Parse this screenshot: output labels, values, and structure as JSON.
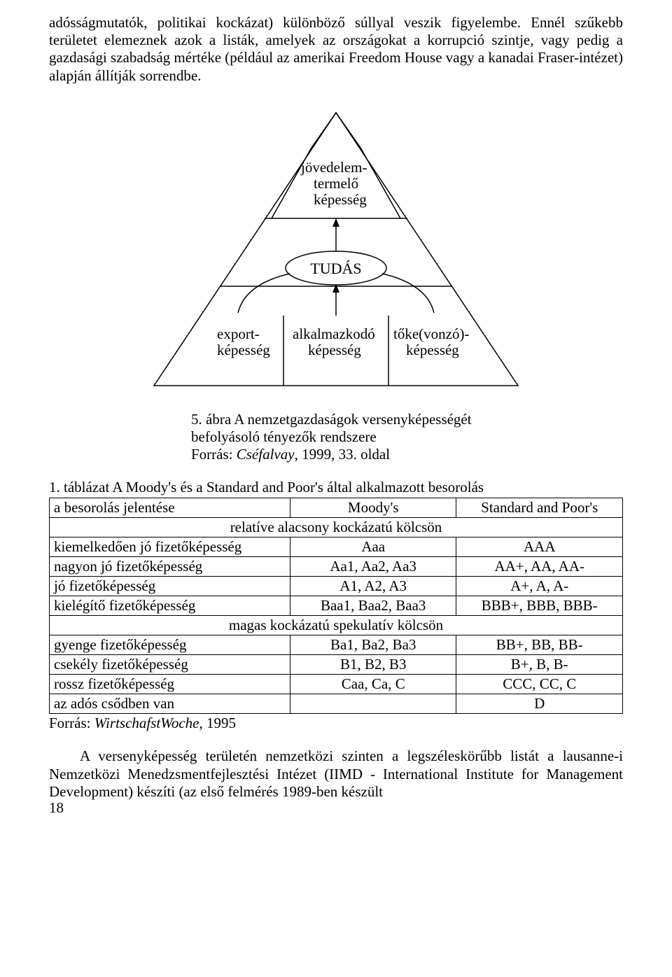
{
  "para1": "adósságmutatók, politikai kockázat) különböző súllyal veszik figyelembe. Ennél szűkebb területet elemeznek azok a listák, amelyek az országokat a korrupció szintje, vagy pedig a gazdasági szabadság mértéke (például az amerikai Freedom House vagy a kanadai Fraser-intézet) alapján állítják sorrendbe.",
  "diagram": {
    "top_label_l1": "jövedelem-",
    "top_label_l2": "termelő",
    "top_label_l3": "képesség",
    "center_label": "TUDÁS",
    "bottom_left_l1": "export-",
    "bottom_left_l2": "képesség",
    "bottom_mid_l1": "alkalmazkodó",
    "bottom_mid_l2": "képesség",
    "bottom_right_l1": "tőke(vonzó)-",
    "bottom_right_l2": "képesség",
    "stroke": "#000000",
    "bg": "#ffffff",
    "fontsize_main": 21,
    "fontsize_center": 22
  },
  "caption_lead": "5. ábra A nemzetgazdaságok versenyképességét befolyásoló tényezők rendszere",
  "caption_src_prefix": "Forrás: ",
  "caption_src_italic": "Cséfalvay",
  "caption_src_suffix": ", 1999, 33. oldal",
  "table_title": "1. táblázat A Moody's és a Standard and Poor's által alkalmazott besorolás",
  "table": {
    "head": [
      "a besorolás jelentése",
      "Moody's",
      "Standard and Poor's"
    ],
    "section1": "relatíve alacsony kockázatú kölcsön",
    "rows1": [
      [
        "kiemelkedően jó fizetőképesség",
        "Aaa",
        "AAA"
      ],
      [
        "nagyon jó fizetőképesség",
        "Aa1, Aa2, Aa3",
        "AA+, AA, AA-"
      ],
      [
        "jó fizetőképesség",
        "A1, A2, A3",
        "A+, A, A-"
      ],
      [
        "kielégítő fizetőképesség",
        "Baa1, Baa2, Baa3",
        "BBB+, BBB, BBB-"
      ]
    ],
    "section2": "magas kockázatú spekulatív kölcsön",
    "rows2": [
      [
        "gyenge fizetőképesség",
        "Ba1, Ba2, Ba3",
        "BB+, BB, BB-"
      ],
      [
        "csekély fizetőképesség",
        "B1, B2, B3",
        "B+, B, B-"
      ],
      [
        "rossz fizetőképesség",
        "Caa, Ca, C",
        "CCC, CC, C"
      ],
      [
        "az adós csődben van",
        "",
        "D"
      ]
    ],
    "col_widths": [
      "42%",
      "29%",
      "29%"
    ]
  },
  "source_prefix": "Forrás: ",
  "source_italic": "WirtschafstWoche",
  "source_suffix": ", 1995",
  "para2": "A versenyképesség területén nemzetközi szinten a legszéleskörűbb listát a lausanne-i Nemzetközi Menedzsmentfejlesztési Intézet (IIMD - International Institute for Management Development) készíti (az első felmérés 1989-ben készült",
  "pagenum": "18"
}
